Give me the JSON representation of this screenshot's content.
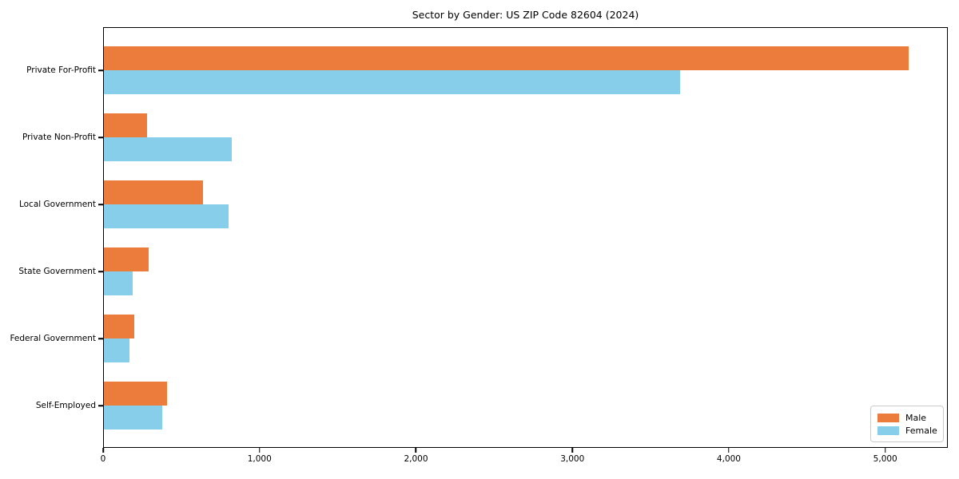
{
  "title": "Sector by Gender: US ZIP Code 82604 (2024)",
  "colors": {
    "male": "#ec7c3b",
    "female": "#87ceeb",
    "axis": "#000000",
    "legend_border": "#cccccc",
    "background": "#ffffff"
  },
  "chart_data": {
    "type": "bar",
    "orientation": "horizontal",
    "title": "Sector by Gender: US ZIP Code 82604 (2024)",
    "categories": [
      "Private For-Profit",
      "Private Non-Profit",
      "Local Government",
      "State Government",
      "Federal Government",
      "Self-Employed"
    ],
    "series": [
      {
        "name": "Male",
        "color": "#ec7c3b",
        "values": [
          5150,
          280,
          640,
          290,
          200,
          410
        ]
      },
      {
        "name": "Female",
        "color": "#87ceeb",
        "values": [
          3690,
          820,
          800,
          190,
          170,
          380
        ]
      }
    ],
    "xlabel": "",
    "ylabel": "",
    "xlim": [
      0,
      5400
    ],
    "x_ticks": [
      0,
      1000,
      2000,
      3000,
      4000,
      5000
    ],
    "x_tick_labels": [
      "0",
      "1,000",
      "2,000",
      "3,000",
      "4,000",
      "5,000"
    ],
    "grid": false,
    "legend_position": "lower right"
  }
}
